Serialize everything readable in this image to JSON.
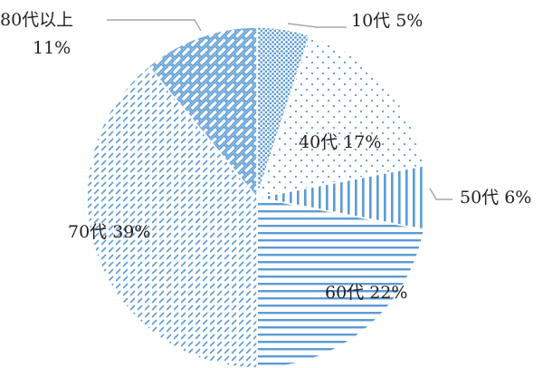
{
  "chart_data": {
    "type": "pie",
    "title": "",
    "accent_color": "#5b9bd5",
    "slices": [
      {
        "label": "10代",
        "percent_text": "5%",
        "value": 5,
        "pattern": "dense-dots"
      },
      {
        "label": "40代",
        "percent_text": "17%",
        "value": 17,
        "pattern": "sparse-dots"
      },
      {
        "label": "50代",
        "percent_text": "6%",
        "value": 6,
        "pattern": "vertical-lines"
      },
      {
        "label": "60代",
        "percent_text": "22%",
        "value": 22,
        "pattern": "horizontal-lines"
      },
      {
        "label": "70代",
        "percent_text": "39%",
        "value": 39,
        "pattern": "small-dashes"
      },
      {
        "label": "80代以上",
        "percent_text": "11%",
        "value": 11,
        "pattern": "brick"
      }
    ]
  }
}
